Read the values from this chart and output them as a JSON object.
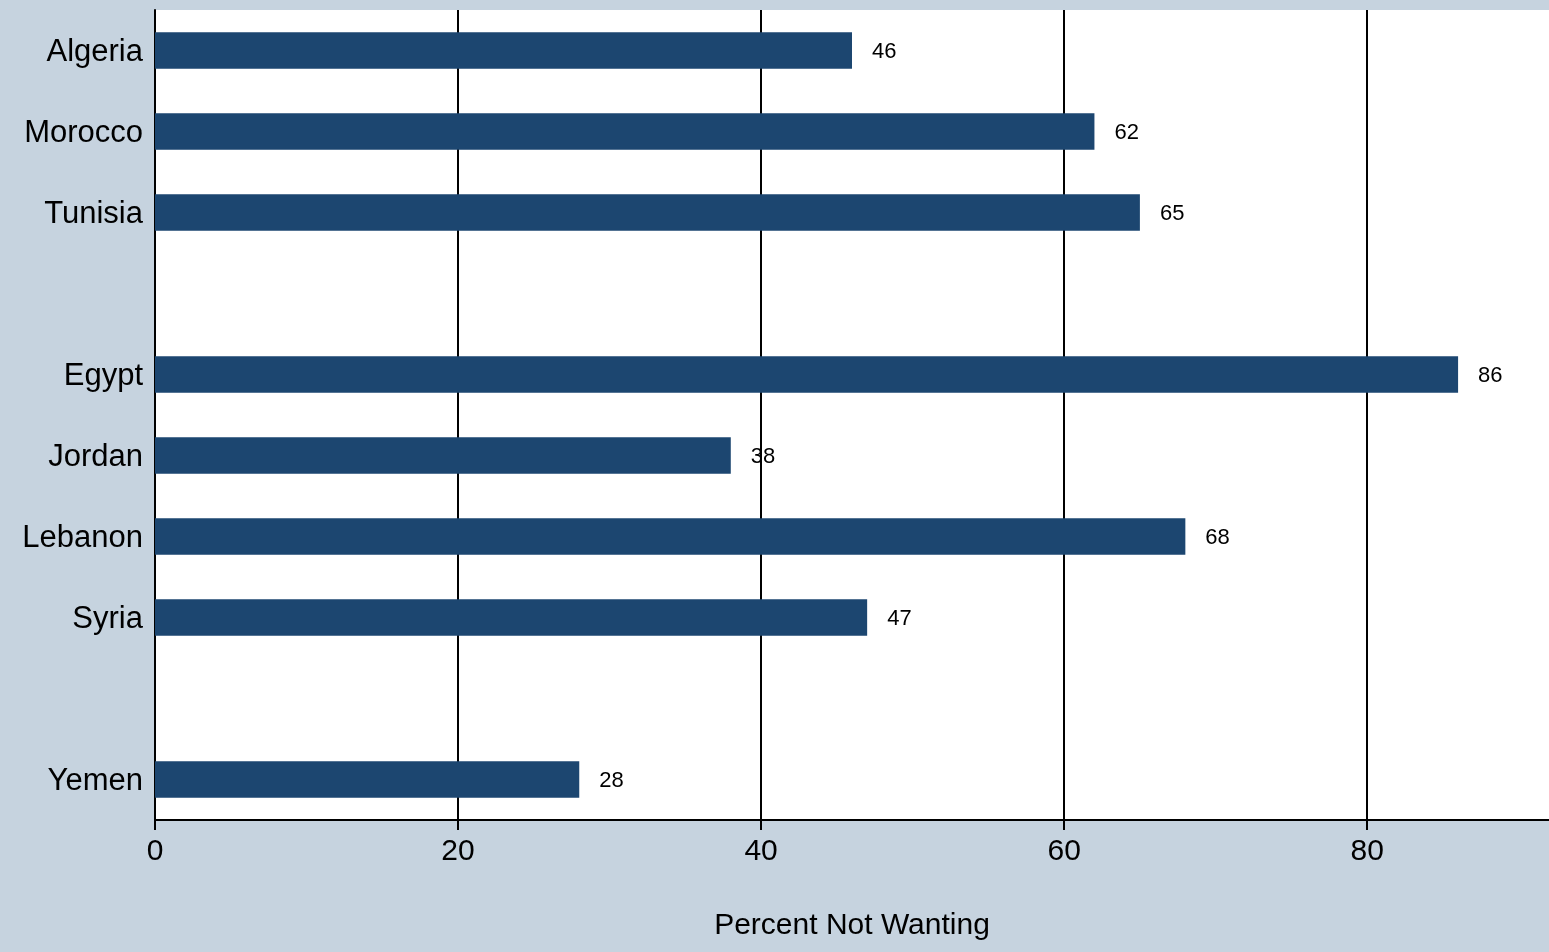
{
  "chart_data": {
    "type": "bar",
    "orientation": "horizontal",
    "xlabel": "Percent Not Wanting",
    "categories": [
      "Algeria",
      "Morocco",
      "Tunisia",
      null,
      "Egypt",
      "Jordan",
      "Lebanon",
      "Syria",
      null,
      "Yemen"
    ],
    "values": [
      46,
      62,
      65,
      null,
      86,
      38,
      68,
      47,
      null,
      28
    ],
    "color": "#1c4670",
    "xlim": [
      0,
      92
    ],
    "xticks": [
      0,
      20,
      40,
      60,
      80
    ],
    "grid": "x",
    "data_labels": true
  }
}
